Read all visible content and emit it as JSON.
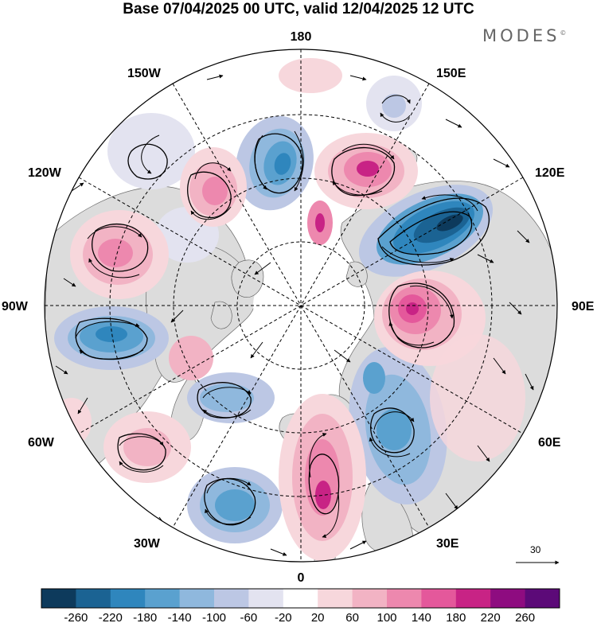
{
  "title": "Base 07/04/2025 00 UTC, valid 12/04/2025 12 UTC",
  "logo": "MODES",
  "logo_mark": "©",
  "longitude_labels": {
    "top": "180",
    "bottom": "0",
    "left": "90W",
    "right": "90E",
    "upper_left": "150W",
    "upper_right": "150E",
    "mid_upper_left": "120W",
    "mid_upper_right": "120E",
    "lower_left": "60W",
    "lower_right": "60E",
    "bottom_left": "30W",
    "bottom_right": "30E"
  },
  "reference_vector": {
    "label": "30"
  },
  "colorbar": {
    "colors": [
      "#0d3a5c",
      "#1b6393",
      "#2f86bd",
      "#5aa1cf",
      "#8fb8dd",
      "#bcc7e4",
      "#e3e3f0",
      "#ffffff",
      "#f7d7dc",
      "#f2b3c4",
      "#ed88ae",
      "#e4589b",
      "#c82385",
      "#8e0c80",
      "#5c0a78"
    ],
    "labels": [
      "-260",
      "-220",
      "-180",
      "-140",
      "-100",
      "-60",
      "-20",
      "20",
      "60",
      "100",
      "140",
      "180",
      "220",
      "260"
    ]
  },
  "colors": {
    "land_fill": "#dcdcdc",
    "coast": "#555555",
    "grid": "#000000"
  }
}
